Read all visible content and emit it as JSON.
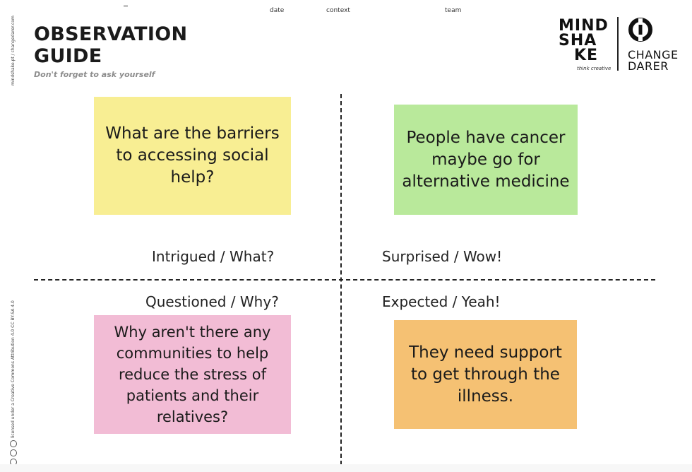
{
  "header": {
    "meta_date": "date",
    "meta_context": "context",
    "meta_team": "team",
    "title_line1": "OBSERVATION",
    "title_line2": "GUIDE",
    "subtitle": "Don't forget to ask yourself"
  },
  "side": {
    "website": "mindshake.pt / changedarer.com",
    "license": "licensed under a Creative Commons Attribution 4.0 CC BY-SA 4.0"
  },
  "logos": {
    "mindshake_line1": "MIND",
    "mindshake_line2": "SHA",
    "mindshake_line3": "KE",
    "mindshake_tagline": "think creative",
    "changedarer_line1": "CHANGE",
    "changedarer_line2": "DARER"
  },
  "quadrants": {
    "intrigued": "Intrigued / What?",
    "surprised": "Surprised / Wow!",
    "questioned": "Questioned / Why?",
    "expected": "Expected / Yeah!"
  },
  "notes": {
    "yellow": "What are the barriers to accessing social help?",
    "green": "People have cancer maybe go for alternative medicine",
    "pink": "Why aren't there any communities to help reduce the stress of patients and their relatives?",
    "orange": "They need support to get through the illness."
  },
  "colors": {
    "yellow": "#f8ee93",
    "green": "#b9e99b",
    "pink": "#f2bcd5",
    "orange": "#f5c173"
  }
}
